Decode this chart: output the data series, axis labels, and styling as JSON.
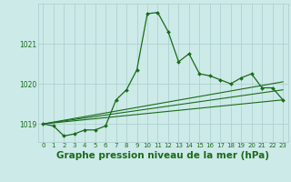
{
  "title": "Graphe pression niveau de la mer (hPa)",
  "bg_color": "#cceae8",
  "grid_color": "#aacccc",
  "line_color": "#1a6b1a",
  "x_labels": [
    "0",
    "1",
    "2",
    "3",
    "4",
    "5",
    "6",
    "7",
    "8",
    "9",
    "10",
    "11",
    "12",
    "13",
    "14",
    "15",
    "16",
    "17",
    "18",
    "19",
    "20",
    "21",
    "22",
    "23"
  ],
  "main_data": [
    1019.0,
    1018.95,
    1018.7,
    1018.75,
    1018.85,
    1018.85,
    1018.95,
    1019.6,
    1019.85,
    1020.35,
    1021.75,
    1021.78,
    1021.3,
    1020.55,
    1020.75,
    1020.25,
    1020.2,
    1020.1,
    1020.0,
    1020.15,
    1020.25,
    1019.9,
    1019.9,
    1019.6
  ],
  "trend1_x": [
    0,
    23
  ],
  "trend1_y": [
    1019.0,
    1019.6
  ],
  "trend2_x": [
    0,
    23
  ],
  "trend2_y": [
    1019.0,
    1020.05
  ],
  "trend3_x": [
    0,
    23
  ],
  "trend3_y": [
    1019.0,
    1019.85
  ],
  "ylim": [
    1018.55,
    1022.0
  ],
  "yticks": [
    1019,
    1020,
    1021
  ],
  "xlim": [
    -0.5,
    23.5
  ],
  "title_fontsize": 7.5,
  "tick_fontsize": 5.5
}
